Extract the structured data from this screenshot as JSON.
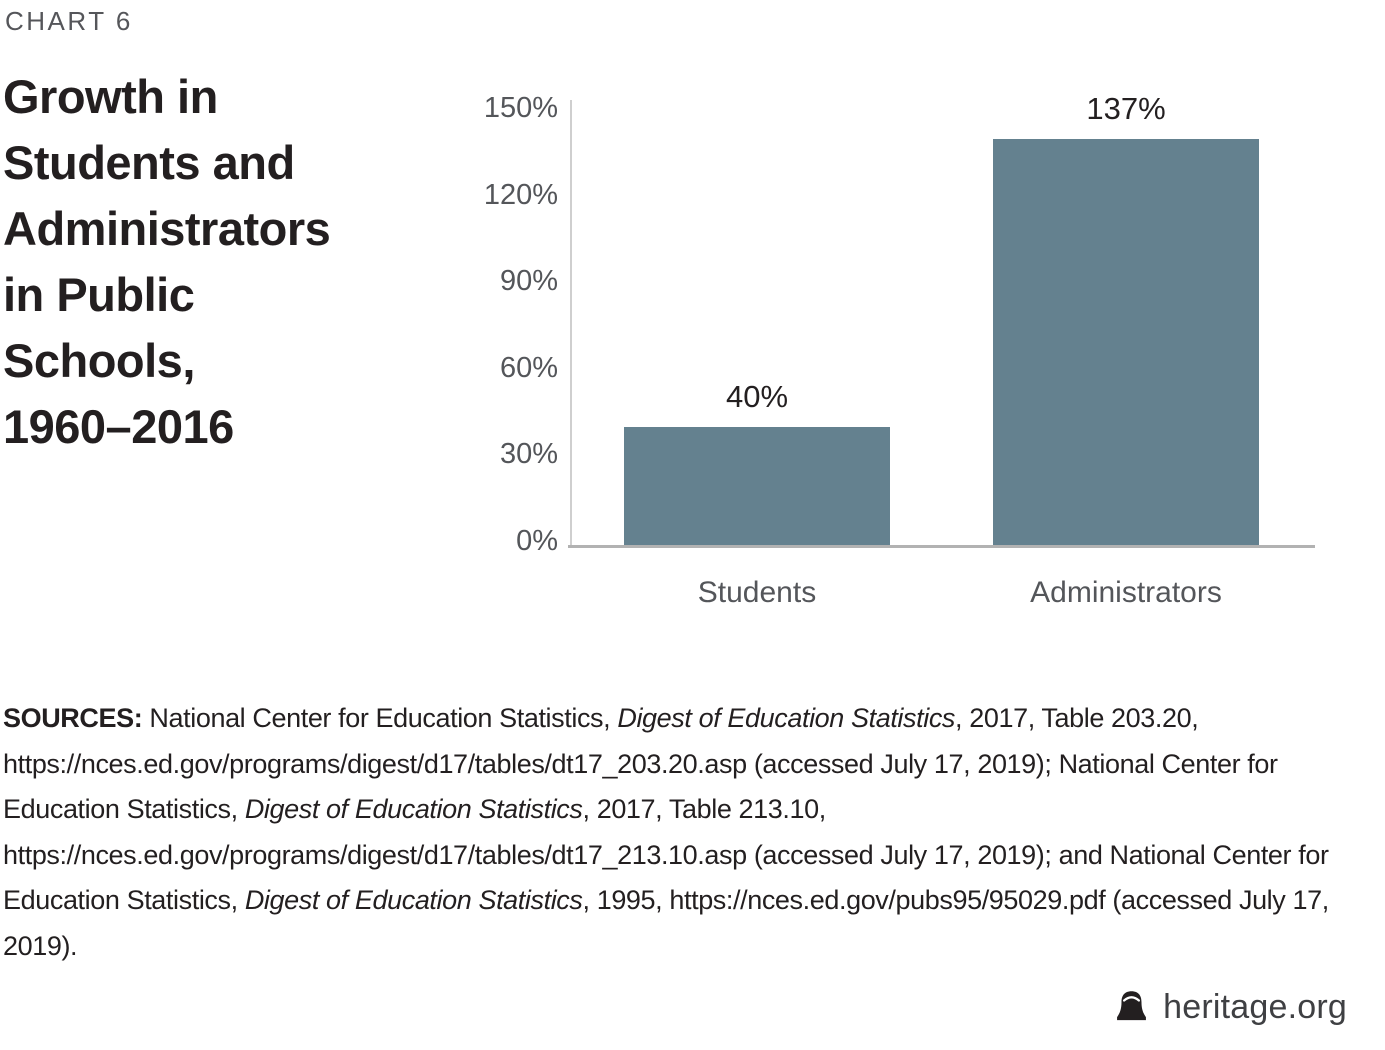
{
  "chart_label": "CHART 6",
  "title": {
    "full": "Growth in Students and Administrators in Public Schools, 1960–2016",
    "lines": [
      "Growth in",
      "Students and",
      "Administrators",
      "in Public",
      "Schools,",
      "1960–2016"
    ]
  },
  "chart_data": {
    "type": "bar",
    "title": "Growth in Students and Administrators in Public Schools, 1960–2016",
    "categories": [
      "Students",
      "Administrators"
    ],
    "values": [
      40,
      137
    ],
    "value_labels": [
      "40%",
      "137%"
    ],
    "xlabel": "",
    "ylabel": "",
    "ylim": [
      0,
      150
    ],
    "ytick_labels": [
      "150%",
      "120%",
      "90%",
      "60%",
      "30%",
      "0%"
    ],
    "grid": false,
    "legend": "none",
    "bar_color": "#64818f",
    "axis_line_color": "#cfcfcf",
    "baseline_color": "#b2b2b2"
  },
  "sources": {
    "segments": [
      {
        "text": "SOURCES: ",
        "bold": true,
        "italic": false
      },
      {
        "text": "National Center for Education Statistics, ",
        "bold": false,
        "italic": false
      },
      {
        "text": "Digest of Education Statistics",
        "bold": false,
        "italic": true
      },
      {
        "text": ", 2017, Table 203.20, https://nces.ed.gov/programs/digest/d17/tables/dt17_203.20.asp (accessed July 17, 2019); National Center for Education Statistics, ",
        "bold": false,
        "italic": false
      },
      {
        "text": "Digest of Education Statistics",
        "bold": false,
        "italic": true
      },
      {
        "text": ", 2017, Table 213.10, https://nces.ed.gov/programs/digest/d17/tables/dt17_213.10.asp (accessed July 17, 2019); and National Center for Education Statistics, ",
        "bold": false,
        "italic": false
      },
      {
        "text": "Digest of Education Statistics",
        "bold": false,
        "italic": true
      },
      {
        "text": ", 1995, https://nces.ed.gov/pubs95/95029.pdf (accessed July 17, 2019).",
        "bold": false,
        "italic": false
      }
    ]
  },
  "footer": {
    "brand": "heritage.org",
    "icon": "liberty-bell-icon"
  }
}
